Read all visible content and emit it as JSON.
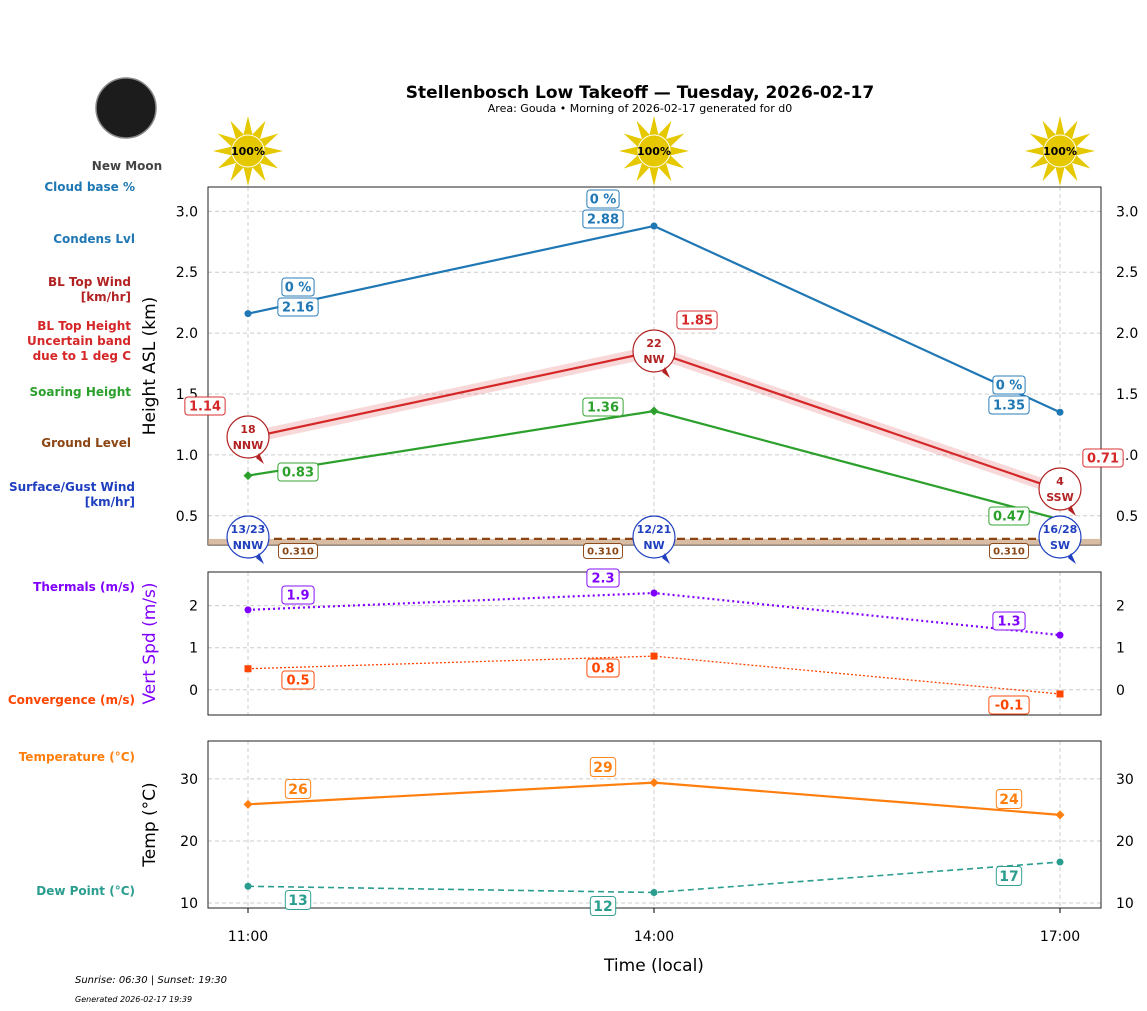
{
  "title": "Stellenbosch Low Takeoff — Tuesday, 2026-02-17",
  "subtitle": "Area: Gouda • Morning of 2026-02-17 generated for d0",
  "moon_phase": "New Moon",
  "footer": {
    "sun": "Sunrise: 06:30 | Sunset: 19:30",
    "generated": "Generated 2026-02-17 19:39"
  },
  "left_labels": {
    "cloud_base": "Cloud base %",
    "condens": "Condens Lvl",
    "bl_wind": "BL Top Wind [km/hr]",
    "bl_height": "BL Top Height Uncertain band due to 1 deg C",
    "soaring": "Soaring Height",
    "ground": "Ground Level",
    "surface_wind": "Surface/Gust Wind [km/hr]",
    "thermals": "Thermals (m/s)",
    "convergence": "Convergence (m/s)",
    "temperature": "Temperature (°C)",
    "dew": "Dew Point (°C)"
  },
  "colors": {
    "condens": "#1f77b4",
    "bl_top": "#d62728",
    "bl_wind": "#b22222",
    "soaring": "#2ca02c",
    "ground": "#8b4513",
    "surface_wind": "#1f3fbf",
    "thermals": "#8000ff",
    "convergence": "#ff4500",
    "temperature": "#ff7f0e",
    "dew": "#2a9d8f",
    "sun": "#e6c800"
  },
  "chart_data": [
    {
      "type": "line",
      "xlabel": "",
      "ylabel": "Height ASL (km)",
      "x": [
        "11:00",
        "14:00",
        "17:00"
      ],
      "ylim": [
        0.26,
        3.2
      ],
      "yticks": [
        "0.5",
        "1.0",
        "1.5",
        "2.0",
        "2.5",
        "3.0"
      ],
      "grid": true,
      "sun_percent": [
        "100%",
        "100%",
        "100%"
      ],
      "series": [
        {
          "key": "condens",
          "values": [
            2.16,
            2.88,
            1.35
          ],
          "labels": [
            "2.16",
            "2.88",
            "1.35"
          ],
          "cloud_pct": [
            "0 %",
            "0 %",
            "0 %"
          ]
        },
        {
          "key": "bl_top",
          "values": [
            1.14,
            1.85,
            0.71
          ],
          "labels": [
            "1.14",
            "1.85",
            "0.71"
          ],
          "band": 0.05
        },
        {
          "key": "soaring",
          "values": [
            0.83,
            1.36,
            0.47
          ],
          "labels": [
            "0.83",
            "1.36",
            "0.47"
          ]
        },
        {
          "key": "ground",
          "values": [
            0.31,
            0.31,
            0.31
          ],
          "labels": [
            "0.310",
            "0.310",
            "0.310"
          ]
        }
      ],
      "bl_wind": [
        {
          "speed": "18",
          "dir": "NNW"
        },
        {
          "speed": "22",
          "dir": "NW"
        },
        {
          "speed": "4",
          "dir": "SSW"
        }
      ],
      "surface_wind": [
        {
          "speed": "13/23",
          "dir": "NNW"
        },
        {
          "speed": "12/21",
          "dir": "NW"
        },
        {
          "speed": "16/28",
          "dir": "SW"
        }
      ]
    },
    {
      "type": "line",
      "ylabel": "Vert Spd (m/s)",
      "x": [
        "11:00",
        "14:00",
        "17:00"
      ],
      "ylim": [
        -0.6,
        2.8
      ],
      "yticks": [
        "0",
        "1",
        "2"
      ],
      "grid": true,
      "series": [
        {
          "key": "thermals",
          "values": [
            1.9,
            2.3,
            1.3
          ],
          "labels": [
            "1.9",
            "2.3",
            "1.3"
          ]
        },
        {
          "key": "convergence",
          "values": [
            0.5,
            0.8,
            -0.1
          ],
          "labels": [
            "0.5",
            "0.8",
            "-0.1"
          ]
        }
      ]
    },
    {
      "type": "line",
      "ylabel": "Temp (°C)",
      "xlabel": "Time (local)",
      "x": [
        "11:00",
        "14:00",
        "17:00"
      ],
      "ylim": [
        9.2,
        36.1
      ],
      "yticks": [
        "10",
        "20",
        "30"
      ],
      "grid": true,
      "series": [
        {
          "key": "temperature",
          "values": [
            25.9,
            29.4,
            24.2
          ],
          "labels": [
            "26",
            "29",
            "24"
          ]
        },
        {
          "key": "dew",
          "values": [
            12.7,
            11.7,
            16.6
          ],
          "labels": [
            "13",
            "12",
            "17"
          ]
        }
      ]
    }
  ]
}
